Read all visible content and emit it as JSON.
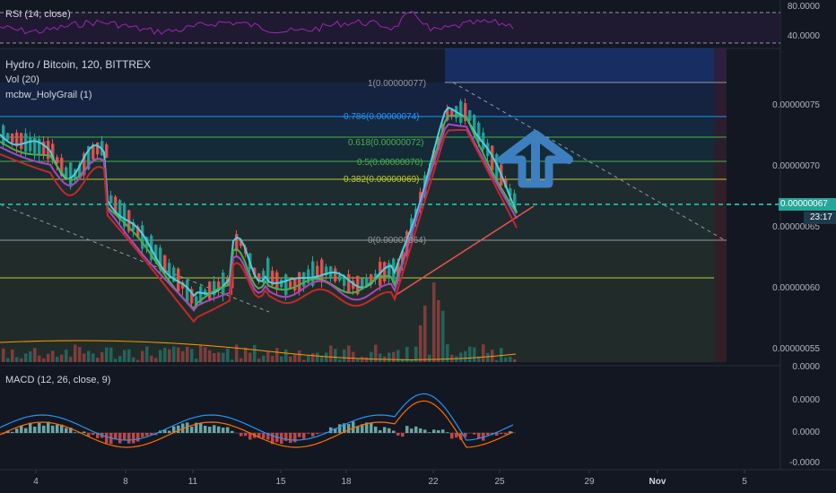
{
  "rsi_pane": {
    "title": "RSI (14, close)",
    "levels": [
      "80.0000",
      "40.0000"
    ]
  },
  "main_pane": {
    "symbol_title": "Hydro / Bitcoin, 120, BITTREX",
    "indicators": [
      "Vol (20)",
      "mcbw_HolyGrail (1)"
    ],
    "price_labels": [
      "0.00000075",
      "0.00000070",
      "0.00000065",
      "0.00000060",
      "0.00000055"
    ],
    "current_price": "0.00000067",
    "countdown": "23:17",
    "fib_levels": [
      {
        "label": "1(0.00000077)",
        "color": "#9598a1"
      },
      {
        "label": "0.786(0.00000074)",
        "color": "#2196f3"
      },
      {
        "label": "0.618(0.00000072)",
        "color": "#4caf50"
      },
      {
        "label": "0.5(0.00000070)",
        "color": "#4caf50"
      },
      {
        "label": "0.382(0.00000069)",
        "color": "#c0ca33"
      },
      {
        "label": "0(0.00000064)",
        "color": "#9598a1"
      }
    ]
  },
  "macd_pane": {
    "title": "MACD (12, 26, close, 9)",
    "labels": [
      "0.0000",
      "0.0000",
      "0.0000",
      "-0.0000"
    ]
  },
  "time_axis": [
    "4",
    "8",
    "11",
    "15",
    "18",
    "22",
    "25",
    "29",
    "Nov",
    "5"
  ],
  "colors": {
    "background": "#131722",
    "up_candle": "#26a69a",
    "down_candle": "#ef5350",
    "arrow": "#3d7fbf",
    "current_price_line": "#26a69a"
  }
}
